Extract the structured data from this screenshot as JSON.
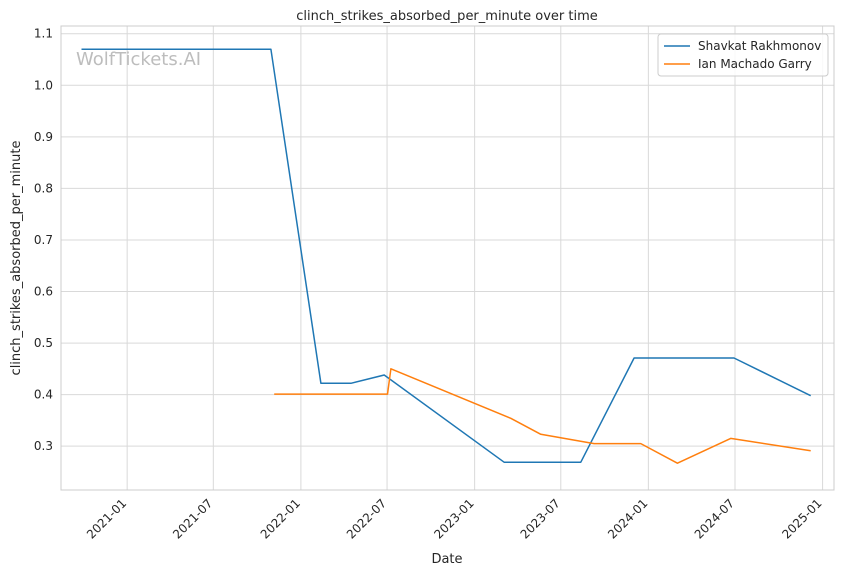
{
  "chart_data": {
    "type": "line",
    "title": "clinch_strikes_absorbed_per_minute over time",
    "xlabel": "Date",
    "ylabel": "clinch_strikes_absorbed_per_minute",
    "watermark": "WolfTickets.AI",
    "grid": true,
    "legend_position": "top-right",
    "xlim": [
      "2020-08-15",
      "2025-01-25"
    ],
    "ylim": [
      0.215,
      1.115
    ],
    "x_ticks": [
      "2021-01",
      "2021-07",
      "2022-01",
      "2022-07",
      "2023-01",
      "2023-07",
      "2024-01",
      "2024-07",
      "2025-01"
    ],
    "y_ticks": [
      "0.3",
      "0.4",
      "0.5",
      "0.6",
      "0.7",
      "0.8",
      "0.9",
      "1.0",
      "1.1"
    ],
    "series": [
      {
        "name": "Shavkat Rakhmonov",
        "color": "#1f77b4",
        "points": [
          [
            "2020-09-27",
            1.07
          ],
          [
            "2021-10-30",
            1.07
          ],
          [
            "2022-02-12",
            0.422
          ],
          [
            "2022-04-16",
            0.422
          ],
          [
            "2022-06-25",
            0.438
          ],
          [
            "2023-03-04",
            0.269
          ],
          [
            "2023-08-12",
            0.269
          ],
          [
            "2023-12-02",
            0.471
          ],
          [
            "2024-06-29",
            0.471
          ],
          [
            "2024-12-07",
            0.398
          ]
        ]
      },
      {
        "name": "Ian Machado Garry",
        "color": "#ff7f0e",
        "points": [
          [
            "2021-11-06",
            0.401
          ],
          [
            "2022-07-02",
            0.401
          ],
          [
            "2022-07-09",
            0.45
          ],
          [
            "2023-03-18",
            0.354
          ],
          [
            "2023-05-20",
            0.323
          ],
          [
            "2023-09-09",
            0.305
          ],
          [
            "2023-12-16",
            0.305
          ],
          [
            "2024-03-02",
            0.267
          ],
          [
            "2024-06-22",
            0.315
          ],
          [
            "2024-12-07",
            0.291
          ]
        ]
      }
    ]
  }
}
